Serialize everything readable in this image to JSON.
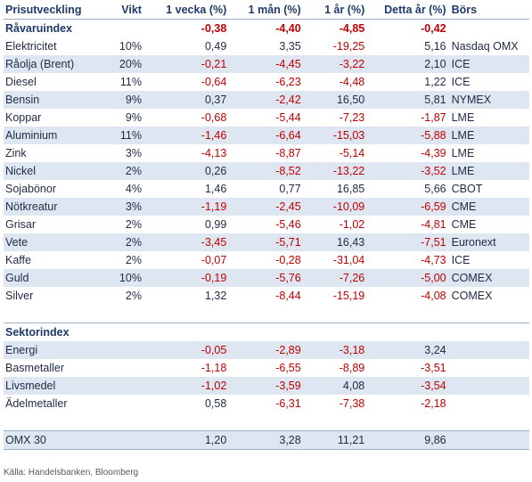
{
  "headers": [
    "Prisutveckling",
    "Vikt",
    "1 vecka (%)",
    "1 mån (%)",
    "1 år (%)",
    "Detta år (%)",
    "Börs"
  ],
  "commodity_section": {
    "label": "Råvaruindex",
    "week": "-0,38",
    "month": "-4,40",
    "year": "-4,85",
    "ytd": "-0,42"
  },
  "commodities": [
    {
      "name": "Elektricitet",
      "weight": "10%",
      "week": "0,49",
      "month": "3,35",
      "year": "-19,25",
      "ytd": "5,16",
      "exchange": "Nasdaq OMX"
    },
    {
      "name": "Råolja (Brent)",
      "weight": "20%",
      "week": "-0,21",
      "month": "-4,45",
      "year": "-3,22",
      "ytd": "2,10",
      "exchange": "ICE"
    },
    {
      "name": "Diesel",
      "weight": "11%",
      "week": "-0,64",
      "month": "-6,23",
      "year": "-4,48",
      "ytd": "1,22",
      "exchange": "ICE"
    },
    {
      "name": "Bensin",
      "weight": "9%",
      "week": "0,37",
      "month": "-2,42",
      "year": "16,50",
      "ytd": "5,81",
      "exchange": "NYMEX"
    },
    {
      "name": "Koppar",
      "weight": "9%",
      "week": "-0,68",
      "month": "-5,44",
      "year": "-7,23",
      "ytd": "-1,87",
      "exchange": "LME"
    },
    {
      "name": "Aluminium",
      "weight": "11%",
      "week": "-1,46",
      "month": "-6,64",
      "year": "-15,03",
      "ytd": "-5,88",
      "exchange": "LME"
    },
    {
      "name": "Zink",
      "weight": "3%",
      "week": "-4,13",
      "month": "-8,87",
      "year": "-5,14",
      "ytd": "-4,39",
      "exchange": "LME"
    },
    {
      "name": "Nickel",
      "weight": "2%",
      "week": "0,26",
      "month": "-8,52",
      "year": "-13,22",
      "ytd": "-3,52",
      "exchange": "LME"
    },
    {
      "name": "Sojabönor",
      "weight": "4%",
      "week": "1,46",
      "month": "0,77",
      "year": "16,85",
      "ytd": "5,66",
      "exchange": "CBOT"
    },
    {
      "name": "Nötkreatur",
      "weight": "3%",
      "week": "-1,19",
      "month": "-2,45",
      "year": "-10,09",
      "ytd": "-6,59",
      "exchange": "CME"
    },
    {
      "name": "Grisar",
      "weight": "2%",
      "week": "0,99",
      "month": "-5,46",
      "year": "-1,02",
      "ytd": "-4,81",
      "exchange": "CME"
    },
    {
      "name": "Vete",
      "weight": "2%",
      "week": "-3,45",
      "month": "-5,71",
      "year": "16,43",
      "ytd": "-7,51",
      "exchange": "Euronext"
    },
    {
      "name": "Kaffe",
      "weight": "2%",
      "week": "-0,07",
      "month": "-0,28",
      "year": "-31,04",
      "ytd": "-4,73",
      "exchange": "ICE"
    },
    {
      "name": "Guld",
      "weight": "10%",
      "week": "-0,19",
      "month": "-5,76",
      "year": "-7,26",
      "ytd": "-5,00",
      "exchange": "COMEX"
    },
    {
      "name": "Silver",
      "weight": "2%",
      "week": "1,32",
      "month": "-8,44",
      "year": "-15,19",
      "ytd": "-4,08",
      "exchange": "COMEX"
    }
  ],
  "sector_section": {
    "label": "Sektorindex"
  },
  "sectors": [
    {
      "name": "Energi",
      "week": "-0,05",
      "month": "-2,89",
      "year": "-3,18",
      "ytd": "3,24"
    },
    {
      "name": "Basmetaller",
      "week": "-1,18",
      "month": "-6,55",
      "year": "-8,89",
      "ytd": "-3,51"
    },
    {
      "name": "Livsmedel",
      "week": "-1,02",
      "month": "-3,59",
      "year": "4,08",
      "ytd": "-3,54"
    },
    {
      "name": "Ädelmetaller",
      "week": "0,58",
      "month": "-6,31",
      "year": "-7,38",
      "ytd": "-2,18"
    }
  ],
  "omx": {
    "name": "OMX 30",
    "week": "1,20",
    "month": "3,28",
    "year": "11,21",
    "ytd": "9,86"
  },
  "source": "Källa: Handelsbanken, Bloomberg",
  "colors": {
    "negative": "#c00000",
    "shade": "#dde6f1",
    "header": "#1f3a6b"
  }
}
